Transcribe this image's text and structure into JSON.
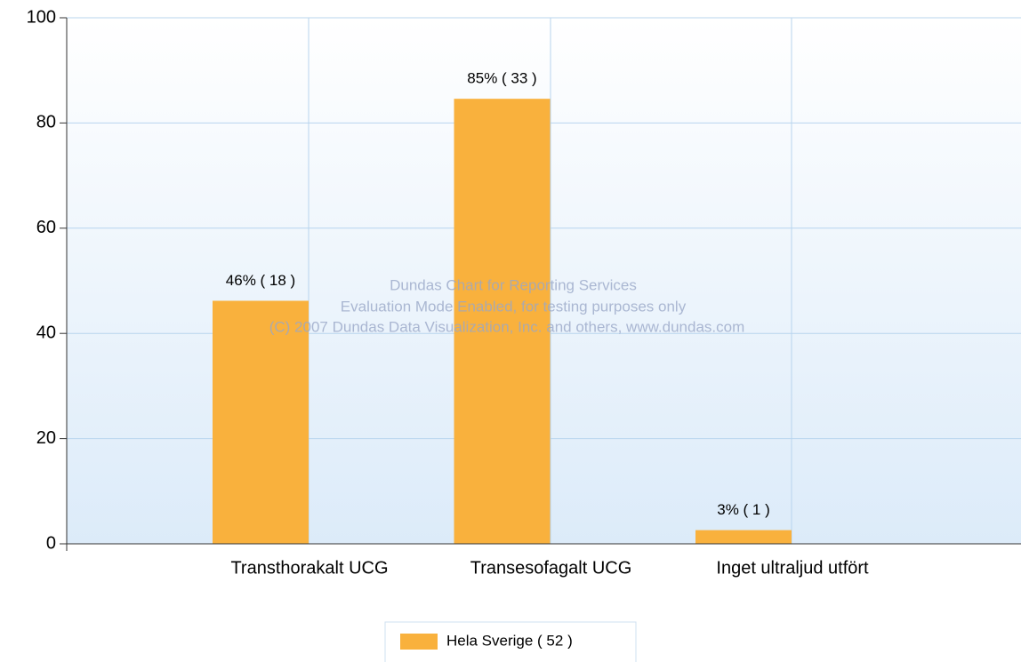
{
  "chart_data": {
    "type": "bar",
    "categories": [
      "Transthorakalt UCG",
      "Transesofagalt UCG",
      "Inget ultraljud utfört"
    ],
    "values": [
      46.2,
      84.6,
      2.6
    ],
    "value_labels": [
      "46% ( 18 )",
      "85% ( 33 )",
      "3% ( 1 )"
    ],
    "color": "#f9b13d",
    "ylim": [
      0,
      100
    ],
    "yticks": [
      0,
      20,
      40,
      60,
      80,
      100
    ],
    "grid": true,
    "legend": {
      "position": "bottom",
      "entries": [
        "Hela Sverige  ( 52 )"
      ]
    },
    "watermark": [
      "Dundas Chart for Reporting Services",
      "Evaluation Mode Enabled, for testing purposes only",
      "(C) 2007 Dundas Data Visualization, Inc. and others, www.dundas.com"
    ]
  }
}
